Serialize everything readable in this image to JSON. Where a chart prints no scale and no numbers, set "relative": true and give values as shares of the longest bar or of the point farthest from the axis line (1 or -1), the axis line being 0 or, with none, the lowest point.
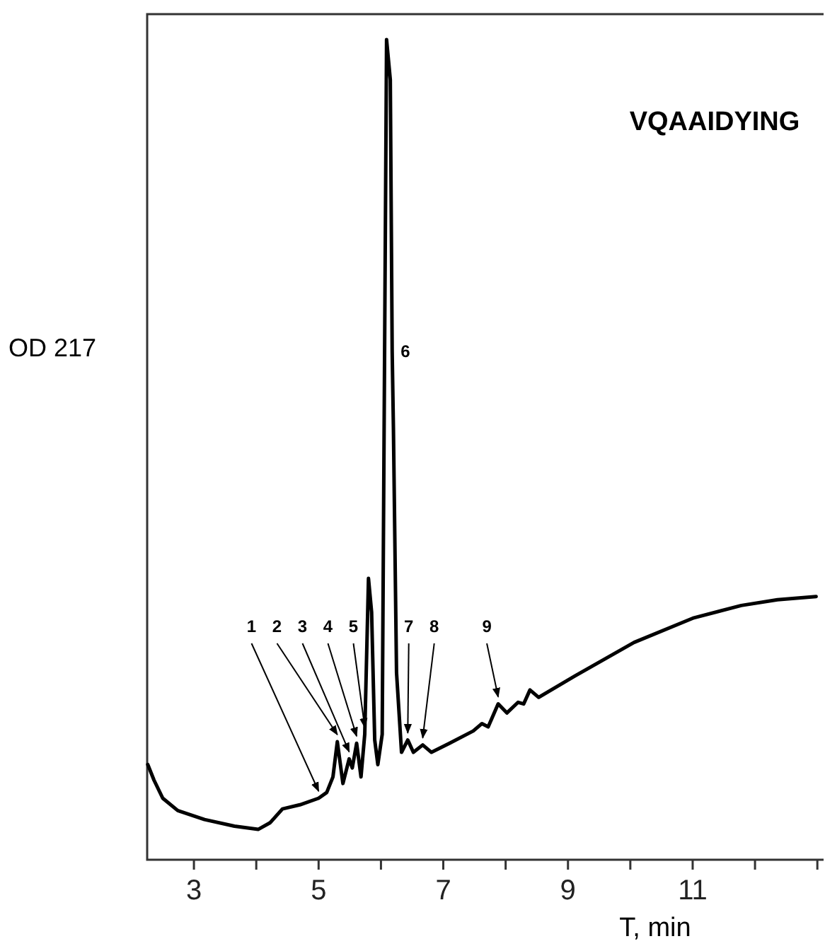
{
  "chart_data": {
    "type": "line",
    "title": "VQAAIDYING",
    "xlabel": "T, min",
    "ylabel": "OD 217",
    "relative": true,
    "color": "#000000",
    "xlim": [
      2.25,
      13.1
    ],
    "xticks": [
      3,
      {
        "value": 4,
        "label": null
      },
      5,
      {
        "value": 6,
        "label": null
      },
      7,
      {
        "value": 8,
        "label": null
      },
      9,
      {
        "value": 10,
        "label": null
      },
      11,
      {
        "value": 12,
        "label": null
      },
      {
        "value": 13,
        "label": null
      }
    ],
    "x": [
      2.26,
      2.36,
      2.5,
      2.74,
      3.17,
      3.65,
      4.03,
      4.22,
      4.42,
      4.7,
      5.0,
      5.13,
      5.23,
      5.3,
      5.39,
      5.49,
      5.54,
      5.61,
      5.68,
      5.74,
      5.8,
      5.85,
      5.9,
      5.95,
      6.02,
      6.09,
      6.15,
      6.18,
      6.2,
      6.25,
      6.33,
      6.43,
      6.52,
      6.67,
      6.81,
      7.1,
      7.48,
      7.62,
      7.72,
      7.88,
      8.02,
      8.2,
      8.29,
      8.39,
      8.53,
      9.11,
      10.06,
      11.02,
      11.78,
      12.36,
      12.98
    ],
    "values": [
      0.116,
      0.097,
      0.075,
      0.06,
      0.049,
      0.041,
      0.037,
      0.045,
      0.062,
      0.067,
      0.075,
      0.082,
      0.101,
      0.144,
      0.093,
      0.123,
      0.112,
      0.142,
      0.101,
      0.153,
      0.343,
      0.302,
      0.146,
      0.116,
      0.153,
      1.0,
      0.951,
      0.62,
      0.526,
      0.228,
      0.131,
      0.146,
      0.131,
      0.14,
      0.131,
      0.142,
      0.157,
      0.166,
      0.162,
      0.19,
      0.179,
      0.192,
      0.19,
      0.207,
      0.198,
      0.224,
      0.265,
      0.295,
      0.31,
      0.317,
      0.321
    ],
    "annotations": [
      {
        "text": "1",
        "x": 5.0,
        "y": 0.075
      },
      {
        "text": "2",
        "x": 5.3,
        "y": 0.144
      },
      {
        "text": "3",
        "x": 5.49,
        "y": 0.123
      },
      {
        "text": "4",
        "x": 5.61,
        "y": 0.142
      },
      {
        "text": "5",
        "x": 5.74,
        "y": 0.153
      },
      {
        "text": "6",
        "x": 6.18,
        "y": 0.62
      },
      {
        "text": "7",
        "x": 6.43,
        "y": 0.146
      },
      {
        "text": "8",
        "x": 6.67,
        "y": 0.14
      },
      {
        "text": "9",
        "x": 7.88,
        "y": 0.19
      }
    ]
  }
}
